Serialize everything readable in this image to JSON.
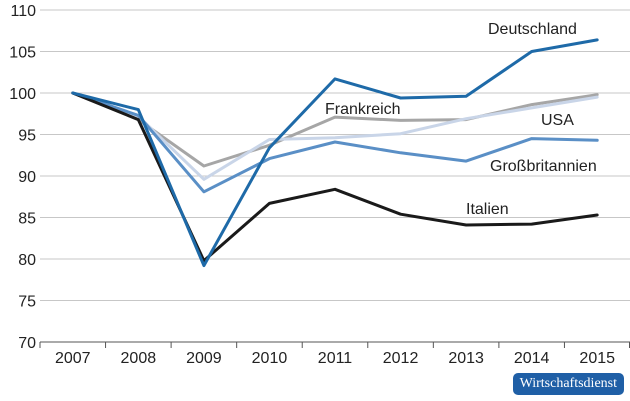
{
  "chart_data": {
    "type": "line",
    "categories": [
      "2007",
      "2008",
      "2009",
      "2010",
      "2011",
      "2012",
      "2013",
      "2014",
      "2015"
    ],
    "ylim": [
      70,
      110
    ],
    "yticks": [
      70,
      75,
      80,
      85,
      90,
      95,
      100,
      105,
      110
    ],
    "grid": "horizontal",
    "series": [
      {
        "name": "Frankreich",
        "color": "#a6a6a6",
        "values": [
          100,
          96.8,
          91.2,
          93.7,
          97.1,
          96.7,
          96.8,
          98.6,
          99.8
        ]
      },
      {
        "name": "USA",
        "color": "#c9d5e8",
        "values": [
          100,
          97.2,
          89.6,
          94.4,
          94.6,
          95.1,
          96.9,
          98.2,
          99.5
        ]
      },
      {
        "name": "Großbritannien",
        "color": "#5a8fc6",
        "values": [
          100,
          97.3,
          88.1,
          92.1,
          94.1,
          92.8,
          91.8,
          94.5,
          94.3
        ]
      },
      {
        "name": "Italien",
        "color": "#1a1a1a",
        "values": [
          100,
          96.8,
          79.8,
          86.7,
          88.4,
          85.4,
          84.1,
          84.2,
          85.3
        ]
      },
      {
        "name": "Deutschland",
        "color": "#1e6aa8",
        "values": [
          100,
          98.0,
          79.2,
          93.4,
          101.7,
          99.4,
          99.6,
          105.0,
          106.4
        ]
      }
    ]
  },
  "badge": "Wirtschaftsdienst"
}
